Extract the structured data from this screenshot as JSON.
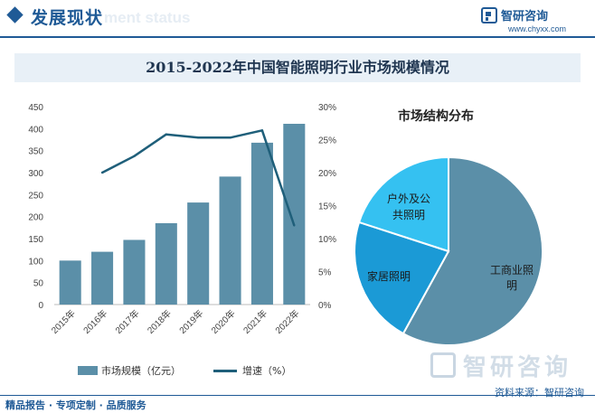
{
  "header": {
    "title": "发展现状",
    "watermark_text": "ment status",
    "brand_name": "智研咨询",
    "brand_url": "www.chyxx.com"
  },
  "banner": {
    "title": "2015-2022年中国智能照明行业市场规模情况"
  },
  "chart_data": [
    {
      "type": "bar",
      "categories": [
        "2015年",
        "2016年",
        "2017年",
        "2018年",
        "2019年",
        "2020年",
        "2021年",
        "2022年"
      ],
      "series": [
        {
          "name": "市场规模（亿元）",
          "type": "bar",
          "axis": "left",
          "values": [
            100,
            120,
            147,
            185,
            232,
            291,
            368,
            411
          ]
        },
        {
          "name": "增速（%）",
          "type": "line",
          "axis": "right",
          "values": [
            null,
            20.0,
            22.5,
            25.8,
            25.3,
            25.3,
            26.4,
            12.0
          ]
        }
      ],
      "ylim_left": [
        0,
        450
      ],
      "yticks_left": [
        "0",
        "50",
        "100",
        "150",
        "200",
        "250",
        "300",
        "350",
        "400",
        "450"
      ],
      "ylim_right": [
        0,
        30
      ],
      "yticks_right": [
        "0%",
        "5%",
        "10%",
        "15%",
        "20%",
        "25%",
        "30%"
      ],
      "grid": false,
      "legend": "bottom",
      "colors": {
        "bar": "#5b8fa8",
        "line": "#1f5f7a"
      }
    },
    {
      "type": "pie",
      "title": "市场结构分布",
      "slices": [
        {
          "label": "工商业照明",
          "value": 58,
          "color": "#5b8fa8"
        },
        {
          "label": "家居照明",
          "value": 22,
          "color": "#1b9ad6"
        },
        {
          "label": "户外及公共照明",
          "value": 20,
          "color": "#35c1f1"
        }
      ]
    }
  ],
  "pie_labels": {
    "commercial_line1": "工商业照",
    "commercial_line2": "明",
    "home": "家居照明",
    "outdoor_line1": "户外及公",
    "outdoor_line2": "共照明"
  },
  "legend": {
    "bar_label": "市场规模（亿元）",
    "line_label": "增速（%）"
  },
  "watermark": {
    "text": "智研咨询"
  },
  "source": "资料来源：智研咨询",
  "footer": "精品报告 · 专项定制 · 品质服务"
}
